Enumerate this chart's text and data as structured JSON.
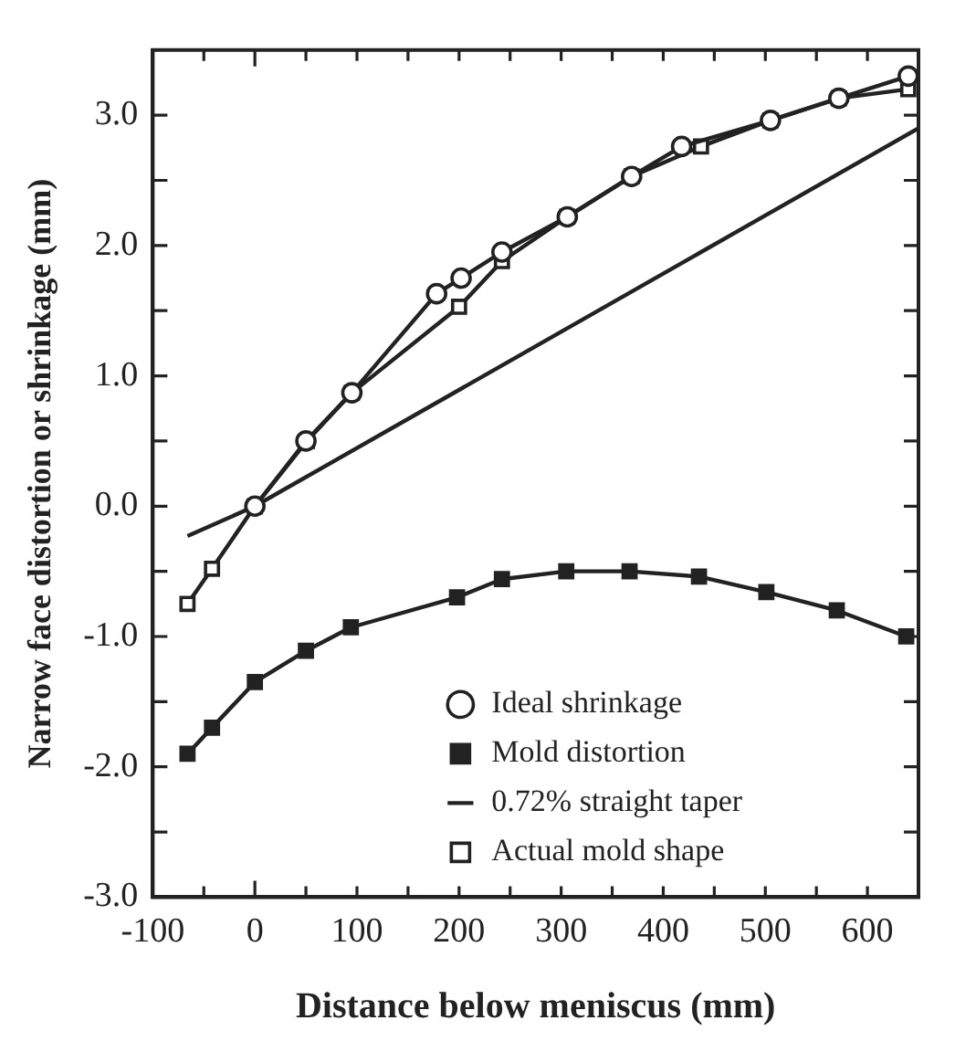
{
  "chart_data": {
    "type": "line",
    "xlabel": "Distance below meniscus (mm)",
    "ylabel": "Narrow face distortion or shrinkage (mm)",
    "xlim": [
      -100,
      650
    ],
    "ylim": [
      -3,
      3.5
    ],
    "xticks": [
      -100,
      {
        "value": -50,
        "label": null
      },
      0,
      {
        "value": 50,
        "label": null
      },
      100,
      {
        "value": 150,
        "label": null
      },
      200,
      {
        "value": 250,
        "label": null
      },
      300,
      {
        "value": 350,
        "label": null
      },
      400,
      {
        "value": 450,
        "label": null
      },
      500,
      {
        "value": 550,
        "label": null
      },
      600
    ],
    "yticks": [
      {
        "value": -3,
        "label": "-3.0"
      },
      {
        "value": -2.5,
        "label": null
      },
      {
        "value": -2,
        "label": "-2.0"
      },
      {
        "value": -1.5,
        "label": null
      },
      {
        "value": -1,
        "label": "-1.0"
      },
      {
        "value": -0.5,
        "label": null
      },
      {
        "value": 0,
        "label": "0.0"
      },
      {
        "value": 0.5,
        "label": null
      },
      {
        "value": 1,
        "label": "1.0"
      },
      {
        "value": 1.5,
        "label": null
      },
      {
        "value": 2,
        "label": "2.0"
      },
      {
        "value": 2.5,
        "label": null
      },
      {
        "value": 3,
        "label": "3.0"
      }
    ],
    "grid": false,
    "legend": "bottom right",
    "line_style": "solid",
    "series": [
      {
        "name": "Ideal shrinkage",
        "color": "#222222",
        "marker": "circle",
        "colors": [
          "#ffffff",
          "#ffffff",
          "#ffffff",
          "#ffffff",
          "#ffffff",
          "#ffffff",
          "#ffffff",
          "#ffffff",
          "#ffffff",
          "#ffffff",
          "#ffffff",
          "#ffffff"
        ],
        "x": [
          0,
          50,
          95,
          178,
          202,
          242,
          306,
          369,
          418,
          505,
          572,
          640
        ],
        "values": [
          0,
          0.5,
          0.87,
          1.63,
          1.75,
          1.95,
          2.22,
          2.53,
          2.76,
          2.96,
          3.13,
          3.3
        ]
      },
      {
        "name": "Mold distortion",
        "color": "#222222",
        "marker": "square",
        "x": [
          -66,
          -42,
          0,
          50,
          94,
          198,
          242,
          305,
          367,
          435,
          501,
          570,
          638
        ],
        "values": [
          -1.9,
          -1.7,
          -1.35,
          -1.11,
          -0.93,
          -0.7,
          -0.56,
          -0.5,
          -0.5,
          -0.54,
          -0.66,
          -0.8,
          -1.0
        ]
      },
      {
        "name": "0.72% straight taper",
        "color": "#222222",
        "marker": "none",
        "x": [
          -66,
          0,
          650
        ],
        "values": [
          -0.23,
          0,
          2.9
        ]
      },
      {
        "name": "Actual mold shape",
        "color": "#222222",
        "marker": "square",
        "colors": [
          "#ffffff",
          "#ffffff",
          "#ffffff",
          "#ffffff",
          "#ffffff",
          "#ffffff",
          "#ffffff",
          "#ffffff",
          "#ffffff",
          "#ffffff",
          "#ffffff",
          "#ffffff",
          "#ffffff"
        ],
        "x": [
          -66,
          -42,
          0,
          51,
          95,
          200,
          242,
          306,
          369,
          437,
          505,
          572,
          640
        ],
        "values": [
          -0.75,
          -0.48,
          0,
          0.5,
          0.87,
          1.53,
          1.88,
          2.22,
          2.53,
          2.76,
          2.96,
          3.13,
          3.2
        ]
      }
    ]
  }
}
